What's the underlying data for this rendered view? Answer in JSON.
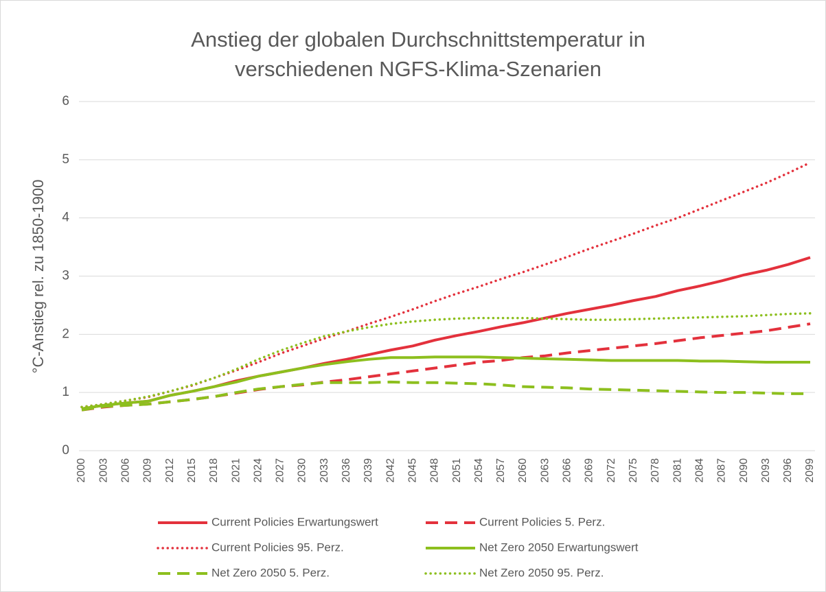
{
  "chart_data": {
    "type": "line",
    "title": [
      "Anstieg der globalen Durchschnittstemperatur in",
      "verschiedenen NGFS-Klima-Szenarien"
    ],
    "y_label": "°C-Anstieg rel. zu 1850-1900",
    "categories": [
      "2000",
      "2003",
      "2006",
      "2009",
      "2012",
      "2015",
      "2018",
      "2021",
      "2024",
      "2027",
      "2030",
      "2033",
      "2036",
      "2039",
      "2042",
      "2045",
      "2048",
      "2051",
      "2054",
      "2057",
      "2060",
      "2063",
      "2066",
      "2069",
      "2072",
      "2075",
      "2078",
      "2081",
      "2084",
      "2087",
      "2090",
      "2093",
      "2096",
      "2099"
    ],
    "ylim": [
      0,
      6
    ],
    "yticks": [
      0,
      1,
      2,
      3,
      4,
      5,
      6
    ],
    "grid": true,
    "legend": "bottom",
    "series": [
      {
        "name": "Current Policies Erwartungswert",
        "color": "#e3313c",
        "dash": "solid",
        "values": [
          0.72,
          0.78,
          0.82,
          0.85,
          0.95,
          1.02,
          1.1,
          1.2,
          1.28,
          1.35,
          1.42,
          1.5,
          1.57,
          1.65,
          1.73,
          1.8,
          1.9,
          1.98,
          2.05,
          2.13,
          2.2,
          2.28,
          2.36,
          2.43,
          2.5,
          2.58,
          2.65,
          2.75,
          2.83,
          2.92,
          3.02,
          3.1,
          3.2,
          3.32
        ]
      },
      {
        "name": "Current Policies 5. Perz.",
        "color": "#e3313c",
        "dash": "dash",
        "values": [
          0.7,
          0.75,
          0.78,
          0.8,
          0.84,
          0.88,
          0.93,
          0.99,
          1.05,
          1.1,
          1.13,
          1.18,
          1.22,
          1.27,
          1.32,
          1.37,
          1.42,
          1.47,
          1.52,
          1.55,
          1.6,
          1.63,
          1.68,
          1.72,
          1.76,
          1.8,
          1.84,
          1.89,
          1.94,
          1.98,
          2.02,
          2.06,
          2.12,
          2.18
        ]
      },
      {
        "name": "Current Policies 95. Perz.",
        "color": "#e3313c",
        "dash": "dot",
        "values": [
          0.75,
          0.8,
          0.86,
          0.92,
          1.02,
          1.12,
          1.25,
          1.38,
          1.52,
          1.67,
          1.8,
          1.93,
          2.05,
          2.18,
          2.3,
          2.43,
          2.57,
          2.7,
          2.82,
          2.95,
          3.07,
          3.2,
          3.33,
          3.47,
          3.6,
          3.73,
          3.87,
          4.0,
          4.15,
          4.3,
          4.45,
          4.6,
          4.77,
          4.95
        ]
      },
      {
        "name": "Net Zero 2050 Erwartungswert",
        "color": "#8dbf1e",
        "dash": "solid",
        "values": [
          0.72,
          0.78,
          0.82,
          0.85,
          0.95,
          1.02,
          1.1,
          1.18,
          1.28,
          1.35,
          1.42,
          1.48,
          1.53,
          1.57,
          1.6,
          1.6,
          1.61,
          1.61,
          1.61,
          1.6,
          1.59,
          1.58,
          1.57,
          1.56,
          1.55,
          1.55,
          1.55,
          1.55,
          1.54,
          1.54,
          1.53,
          1.52,
          1.52,
          1.52
        ]
      },
      {
        "name": "Net Zero 2050 5. Perz.",
        "color": "#8dbf1e",
        "dash": "dash",
        "values": [
          0.7,
          0.76,
          0.78,
          0.8,
          0.84,
          0.88,
          0.93,
          1.0,
          1.06,
          1.1,
          1.14,
          1.17,
          1.17,
          1.17,
          1.18,
          1.17,
          1.17,
          1.16,
          1.15,
          1.13,
          1.1,
          1.09,
          1.08,
          1.06,
          1.05,
          1.04,
          1.03,
          1.02,
          1.01,
          1.0,
          1.0,
          0.99,
          0.98,
          0.98
        ]
      },
      {
        "name": "Net Zero 2050 95. Perz.",
        "color": "#8dbf1e",
        "dash": "dot",
        "values": [
          0.75,
          0.8,
          0.86,
          0.93,
          1.02,
          1.13,
          1.25,
          1.4,
          1.57,
          1.72,
          1.85,
          1.97,
          2.05,
          2.12,
          2.18,
          2.22,
          2.25,
          2.27,
          2.28,
          2.28,
          2.28,
          2.27,
          2.26,
          2.25,
          2.25,
          2.26,
          2.27,
          2.28,
          2.29,
          2.3,
          2.31,
          2.33,
          2.35,
          2.36
        ]
      }
    ]
  }
}
